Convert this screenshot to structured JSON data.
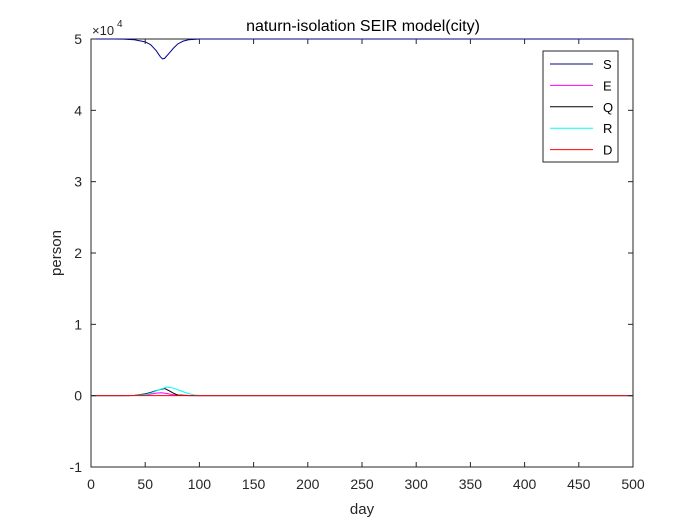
{
  "chart_data": {
    "type": "line",
    "title": "naturn-isolation SEIR model(city)",
    "xlabel": "day",
    "ylabel": "person",
    "xlim": [
      0,
      500
    ],
    "ylim": [
      -1,
      5
    ],
    "y_multiplier": "×10^4",
    "y_multiplier_base": "×10",
    "y_multiplier_exp": "4",
    "xticks": [
      0,
      50,
      100,
      150,
      200,
      250,
      300,
      350,
      400,
      450,
      500
    ],
    "yticks": [
      -1,
      0,
      1,
      2,
      3,
      4,
      5
    ],
    "grid": false,
    "legend_position": "top-right",
    "series": [
      {
        "name": "S",
        "color": "#00008b",
        "x": [
          0,
          20,
          30,
          40,
          50,
          55,
          60,
          64,
          66,
          68,
          72,
          76,
          80,
          85,
          90,
          100,
          500
        ],
        "y": [
          5.0,
          5.0,
          4.998,
          4.99,
          4.96,
          4.92,
          4.84,
          4.75,
          4.72,
          4.73,
          4.8,
          4.87,
          4.93,
          4.97,
          4.99,
          5.0,
          5.0
        ]
      },
      {
        "name": "E",
        "color": "#ff00ff",
        "x": [
          0,
          30,
          40,
          50,
          55,
          60,
          65,
          70,
          75,
          80,
          90,
          100,
          500
        ],
        "y": [
          0,
          0,
          0.003,
          0.012,
          0.022,
          0.035,
          0.04,
          0.03,
          0.015,
          0.006,
          0.001,
          0,
          0
        ]
      },
      {
        "name": "Q",
        "color": "#000000",
        "x": [
          0,
          30,
          40,
          50,
          55,
          60,
          65,
          68,
          72,
          76,
          80,
          90,
          100,
          500
        ],
        "y": [
          0,
          0,
          0.004,
          0.025,
          0.045,
          0.07,
          0.09,
          0.1,
          0.07,
          0.035,
          0.01,
          0.002,
          0,
          0
        ]
      },
      {
        "name": "R",
        "color": "#00ffff",
        "x": [
          0,
          30,
          40,
          50,
          55,
          60,
          65,
          70,
          75,
          80,
          85,
          90,
          95,
          100,
          105,
          500
        ],
        "y": [
          0,
          0,
          0.003,
          0.015,
          0.035,
          0.065,
          0.095,
          0.12,
          0.11,
          0.085,
          0.055,
          0.03,
          0.012,
          0.004,
          0.001,
          0
        ]
      },
      {
        "name": "D",
        "color": "#ff0000",
        "x": [
          0,
          500
        ],
        "y": [
          0,
          0
        ]
      }
    ]
  }
}
